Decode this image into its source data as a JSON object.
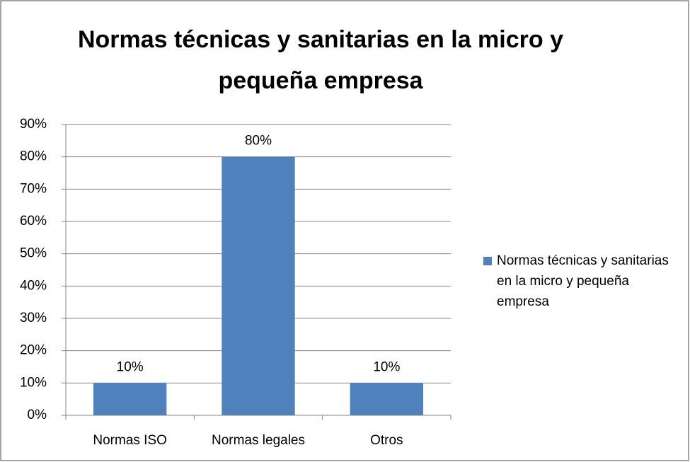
{
  "chart_data": {
    "type": "bar",
    "title": "Normas técnicas y sanitarias en la micro y pequeña empresa",
    "categories": [
      "Normas ISO",
      "Normas legales",
      "Otros"
    ],
    "series": [
      {
        "name": "Normas técnicas y sanitarias en la micro y pequeña empresa",
        "color": "#4f81bd",
        "values": [
          10,
          80,
          10
        ],
        "value_labels": [
          "10%",
          "80%",
          "10%"
        ]
      }
    ],
    "ylim": [
      0,
      90
    ],
    "yticks": [
      {
        "value": 0,
        "label": "0%"
      },
      {
        "value": 10,
        "label": "10%"
      },
      {
        "value": 20,
        "label": "20%"
      },
      {
        "value": 30,
        "label": "30%"
      },
      {
        "value": 40,
        "label": "40%"
      },
      {
        "value": 50,
        "label": "50%"
      },
      {
        "value": 60,
        "label": "60%"
      },
      {
        "value": 70,
        "label": "70%"
      },
      {
        "value": 80,
        "label": "80%"
      },
      {
        "value": 90,
        "label": "90%"
      }
    ],
    "grid": true,
    "legend": "right"
  }
}
